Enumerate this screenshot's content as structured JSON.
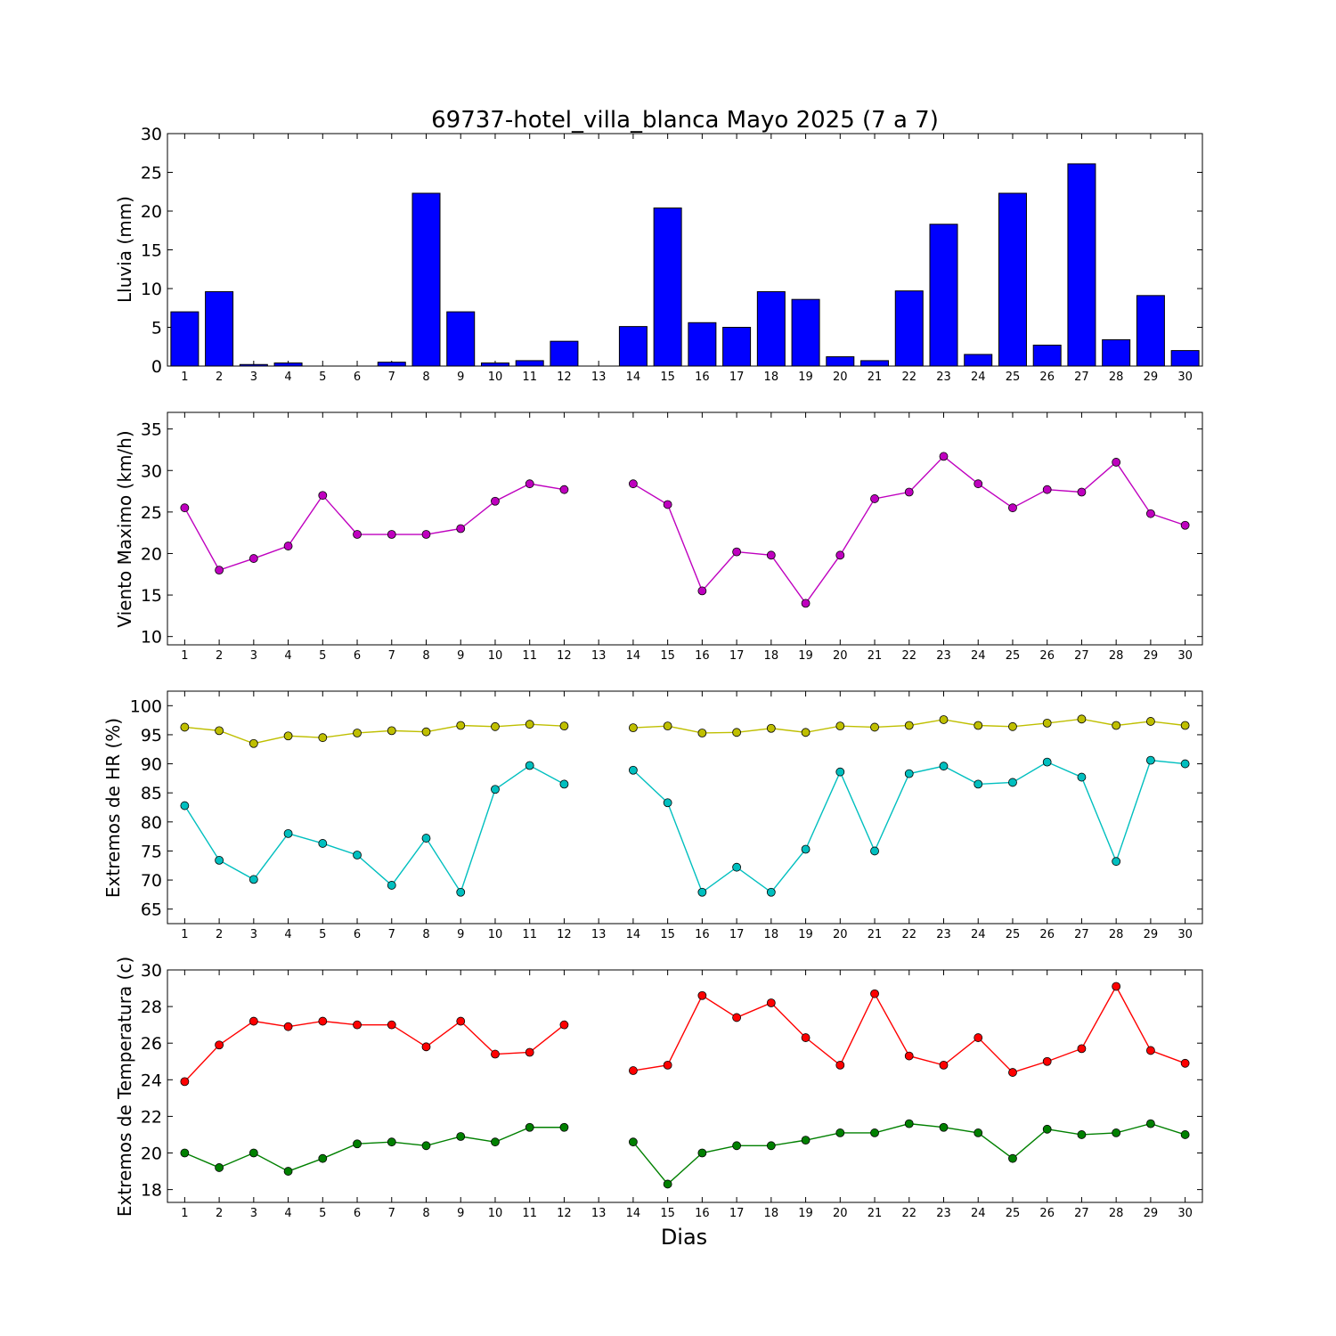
{
  "title": "69737-hotel_villa_blanca Mayo 2025  (7 a 7)",
  "xlabel": "Dias",
  "colors": {
    "rain": "#0000ff",
    "wind": "#bf00bf",
    "hr_max": "#bfbf00",
    "hr_min": "#00bfbf",
    "temp_max": "#ff0000",
    "temp_min": "#008000"
  },
  "chart_data": [
    {
      "type": "bar",
      "ylabel": "Lluvia (mm)",
      "categories": [
        1,
        2,
        3,
        4,
        5,
        6,
        7,
        8,
        9,
        10,
        11,
        12,
        13,
        14,
        15,
        16,
        17,
        18,
        19,
        20,
        21,
        22,
        23,
        24,
        25,
        26,
        27,
        28,
        29,
        30
      ],
      "values": [
        7.0,
        9.6,
        0.2,
        0.4,
        0.0,
        0.0,
        0.5,
        22.3,
        7.0,
        0.4,
        0.7,
        3.2,
        null,
        5.1,
        20.4,
        5.6,
        5.0,
        9.6,
        8.6,
        1.2,
        0.7,
        9.7,
        18.3,
        1.5,
        22.3,
        2.7,
        26.1,
        3.4,
        9.1,
        2.0
      ],
      "ylim": [
        0,
        30
      ],
      "yticks": [
        0,
        5,
        10,
        15,
        20,
        25,
        30
      ]
    },
    {
      "type": "line",
      "ylabel": "Viento Maximo (km/h)",
      "x": [
        1,
        2,
        3,
        4,
        5,
        6,
        7,
        8,
        9,
        10,
        11,
        12,
        13,
        14,
        15,
        16,
        17,
        18,
        19,
        20,
        21,
        22,
        23,
        24,
        25,
        26,
        27,
        28,
        29,
        30
      ],
      "series": [
        {
          "values": [
            25.5,
            18.0,
            19.4,
            20.9,
            27.0,
            22.3,
            22.3,
            22.3,
            23.0,
            26.3,
            28.4,
            27.7,
            null,
            28.4,
            25.9,
            15.5,
            20.2,
            19.8,
            14.0,
            19.8,
            26.6,
            27.4,
            31.7,
            28.4,
            25.5,
            27.7,
            27.4,
            31.0,
            24.8,
            23.4
          ]
        }
      ],
      "ylim": [
        9,
        37
      ],
      "yticks": [
        10,
        15,
        20,
        25,
        30,
        35
      ]
    },
    {
      "type": "line",
      "ylabel": "Extremos de HR (%)",
      "x": [
        1,
        2,
        3,
        4,
        5,
        6,
        7,
        8,
        9,
        10,
        11,
        12,
        13,
        14,
        15,
        16,
        17,
        18,
        19,
        20,
        21,
        22,
        23,
        24,
        25,
        26,
        27,
        28,
        29,
        30
      ],
      "series": [
        {
          "values": [
            96.3,
            95.7,
            93.5,
            94.8,
            94.5,
            95.3,
            95.7,
            95.5,
            96.6,
            96.4,
            96.8,
            96.5,
            null,
            96.2,
            96.5,
            95.3,
            95.4,
            96.1,
            95.4,
            96.5,
            96.3,
            96.6,
            97.6,
            96.6,
            96.4,
            97.0,
            97.7,
            96.6,
            97.3,
            96.6
          ]
        },
        {
          "values": [
            82.8,
            73.4,
            70.1,
            78.0,
            76.3,
            74.3,
            69.1,
            77.2,
            67.9,
            85.6,
            89.7,
            86.5,
            null,
            88.9,
            83.3,
            67.9,
            72.2,
            67.9,
            75.3,
            88.6,
            75.0,
            88.3,
            89.6,
            86.5,
            86.8,
            90.3,
            87.7,
            73.2,
            90.6,
            90.0
          ]
        }
      ],
      "ylim": [
        62.5,
        102.5
      ],
      "yticks": [
        65,
        70,
        75,
        80,
        85,
        90,
        95,
        100
      ]
    },
    {
      "type": "line",
      "ylabel": "Extremos de Temperatura (c)",
      "x": [
        1,
        2,
        3,
        4,
        5,
        6,
        7,
        8,
        9,
        10,
        11,
        12,
        13,
        14,
        15,
        16,
        17,
        18,
        19,
        20,
        21,
        22,
        23,
        24,
        25,
        26,
        27,
        28,
        29,
        30
      ],
      "series": [
        {
          "values": [
            23.9,
            25.9,
            27.2,
            26.9,
            27.2,
            27.0,
            27.0,
            25.8,
            27.2,
            25.4,
            25.5,
            27.0,
            null,
            24.5,
            24.8,
            28.6,
            27.4,
            28.2,
            26.3,
            24.8,
            28.7,
            25.3,
            24.8,
            26.3,
            24.4,
            25.0,
            25.7,
            29.1,
            25.6,
            24.9
          ]
        },
        {
          "values": [
            20.0,
            19.2,
            20.0,
            19.0,
            19.7,
            20.5,
            20.6,
            20.4,
            20.9,
            20.6,
            21.4,
            21.4,
            null,
            20.6,
            18.3,
            20.0,
            20.4,
            20.4,
            20.7,
            21.1,
            21.1,
            21.6,
            21.4,
            21.1,
            19.7,
            21.3,
            21.0,
            21.1,
            21.6,
            21.0
          ]
        }
      ],
      "ylim": [
        17.3,
        30
      ],
      "yticks": [
        18,
        20,
        22,
        24,
        26,
        28,
        30
      ]
    }
  ]
}
